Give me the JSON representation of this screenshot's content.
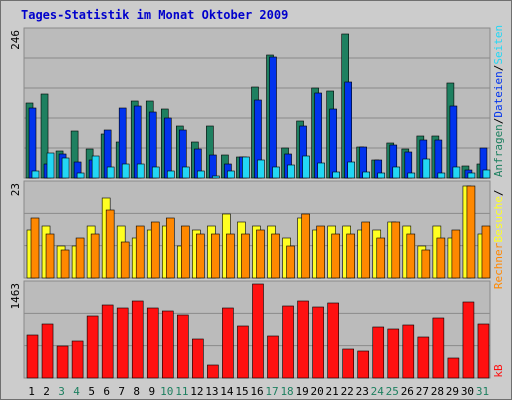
{
  "title": "Tages-Statistik im Monat Oktober 2009",
  "colors": {
    "background": "#cccccc",
    "plot_bg": "#bbbbbb",
    "anfragen": "#1e8060",
    "dateien": "#0033ee",
    "seiten": "#22d7f5",
    "besuche": "#ffff22",
    "rechner": "#ff8800",
    "kb": "#ff1010",
    "weekend_label": "#1e8060",
    "weekday_label": "#000000"
  },
  "chart_data": [
    {
      "type": "bar",
      "panel": "top",
      "ytick_label": "246",
      "ylim": [
        0,
        246
      ],
      "right_label_parts": [
        {
          "text": "Anfragen",
          "color": "#1e8060"
        },
        {
          "text": "/",
          "color": "#000000"
        },
        {
          "text": "Dateien",
          "color": "#0033ee"
        },
        {
          "text": "/",
          "color": "#000000"
        },
        {
          "text": "Seiten",
          "color": "#22d7f5"
        }
      ],
      "series": [
        {
          "name": "Anfragen",
          "color": "#1e8060",
          "values": [
            125,
            141,
            46,
            78,
            49,
            74,
            61,
            129,
            129,
            115,
            87,
            60,
            87,
            39,
            35,
            153,
            205,
            50,
            96,
            150,
            146,
            241,
            52,
            30,
            58,
            49,
            70,
            70,
            159,
            20,
            24
          ]
        },
        {
          "name": "Dateien",
          "color": "#0033ee",
          "values": [
            117,
            24,
            40,
            26,
            30,
            80,
            117,
            120,
            110,
            100,
            81,
            48,
            38,
            23,
            35,
            131,
            203,
            40,
            87,
            142,
            116,
            160,
            52,
            30,
            55,
            44,
            64,
            63,
            120,
            14,
            50
          ]
        },
        {
          "name": "Seiten",
          "color": "#22d7f5",
          "values": [
            12,
            42,
            34,
            9,
            37,
            18,
            24,
            24,
            18,
            12,
            18,
            12,
            4,
            12,
            35,
            30,
            18,
            21,
            37,
            25,
            10,
            26,
            10,
            9,
            19,
            9,
            31,
            9,
            18,
            8,
            14
          ]
        }
      ]
    },
    {
      "type": "bar",
      "panel": "middle",
      "ytick_label": "23",
      "ylim": [
        0,
        23
      ],
      "right_label_parts": [
        {
          "text": "Besuche",
          "color": "#ffff22"
        },
        {
          "text": "/",
          "color": "#000000"
        }
      ],
      "series": [
        {
          "name": "Besuche",
          "color": "#ffff22",
          "values": [
            12,
            13,
            8,
            8,
            13,
            20,
            13,
            10,
            12,
            13,
            8,
            12,
            13,
            16,
            14,
            13,
            13,
            10,
            15,
            12,
            13,
            13,
            12,
            12,
            14,
            13,
            8,
            13,
            10,
            23,
            11
          ]
        },
        {
          "name": "Rechner",
          "color": "#ff8800",
          "values": [
            15,
            11,
            7,
            10,
            11,
            17,
            9,
            13,
            14,
            15,
            13,
            11,
            11,
            11,
            11,
            12,
            11,
            8,
            16,
            13,
            11,
            11,
            14,
            10,
            14,
            11,
            7,
            10,
            12,
            23,
            13
          ]
        }
      ]
    },
    {
      "type": "bar",
      "panel": "bottom",
      "ytick_label": "1463",
      "ylim": [
        0,
        1463
      ],
      "right_label_parts": [
        {
          "text": "kB",
          "color": "#ff1010"
        }
      ],
      "series": [
        {
          "name": "kB",
          "color": "#ff1010",
          "values": [
            677,
            837,
            503,
            572,
            967,
            1138,
            1083,
            1192,
            1083,
            1045,
            986,
            603,
            206,
            1097,
            813,
            1463,
            651,
            1123,
            1202,
            1099,
            1175,
            448,
            424,
            786,
            768,
            827,
            633,
            932,
            316,
            1186,
            847
          ]
        }
      ]
    }
  ],
  "x_labels": [
    "1",
    "2",
    "3",
    "4",
    "5",
    "6",
    "7",
    "8",
    "9",
    "10",
    "11",
    "12",
    "13",
    "14",
    "15",
    "16",
    "17",
    "18",
    "19",
    "20",
    "21",
    "22",
    "23",
    "24",
    "25",
    "26",
    "27",
    "28",
    "29",
    "30",
    "31"
  ],
  "x_label_weekend": [
    false,
    false,
    true,
    true,
    false,
    false,
    false,
    false,
    false,
    true,
    true,
    false,
    false,
    false,
    false,
    false,
    true,
    true,
    false,
    false,
    false,
    false,
    false,
    true,
    true,
    false,
    false,
    false,
    false,
    false,
    true
  ]
}
